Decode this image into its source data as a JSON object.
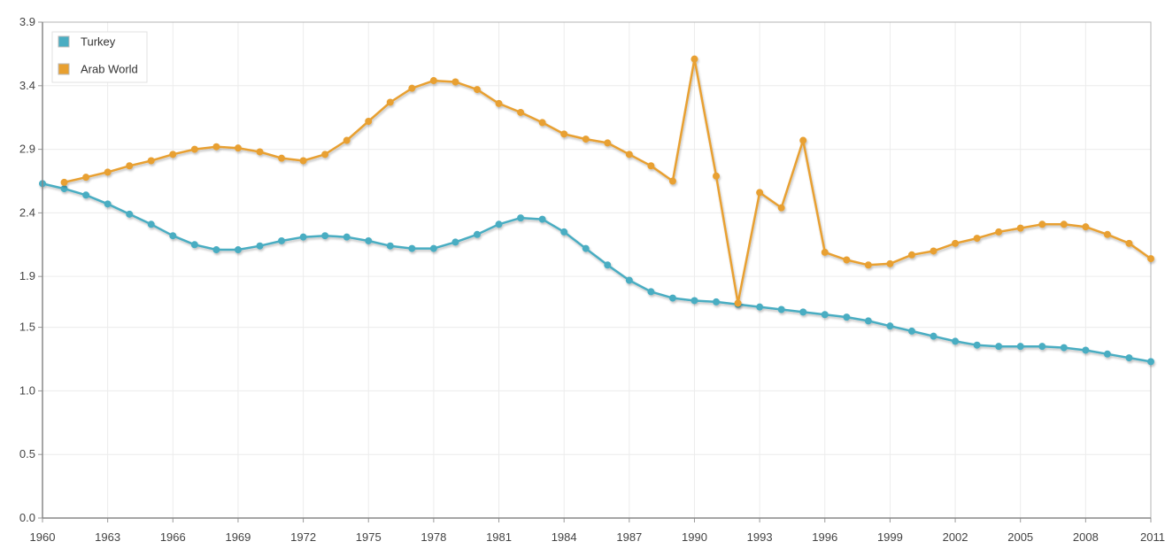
{
  "chart_data": {
    "type": "line",
    "title": "",
    "xlabel": "",
    "ylabel": "",
    "xlim": [
      1960,
      2011
    ],
    "ylim": [
      0,
      3.9
    ],
    "y_ticks": [
      "0.0",
      "0.5",
      "1.0",
      "1.5",
      "1.9",
      "2.4",
      "2.9",
      "3.4",
      "3.9"
    ],
    "x_ticks": [
      "1960",
      "1963",
      "1966",
      "1969",
      "1972",
      "1975",
      "1978",
      "1981",
      "1984",
      "1987",
      "1990",
      "1993",
      "1996",
      "1999",
      "2002",
      "2005",
      "2008",
      "2011"
    ],
    "grid": true,
    "legend_position": "top-left",
    "series": [
      {
        "name": "Turkey",
        "color": "#4aadc2",
        "x": [
          1960,
          1961,
          1962,
          1963,
          1964,
          1965,
          1966,
          1967,
          1968,
          1969,
          1970,
          1971,
          1972,
          1973,
          1974,
          1975,
          1976,
          1977,
          1978,
          1979,
          1980,
          1981,
          1982,
          1983,
          1984,
          1985,
          1986,
          1987,
          1988,
          1989,
          1990,
          1991,
          1992,
          1993,
          1994,
          1995,
          1996,
          1997,
          1998,
          1999,
          2000,
          2001,
          2002,
          2003,
          2004,
          2005,
          2006,
          2007,
          2008,
          2009,
          2010,
          2011
        ],
        "values": [
          2.63,
          2.59,
          2.54,
          2.47,
          2.39,
          2.31,
          2.22,
          2.15,
          2.11,
          2.11,
          2.14,
          2.18,
          2.21,
          2.22,
          2.21,
          2.18,
          2.14,
          2.12,
          2.12,
          2.17,
          2.23,
          2.31,
          2.36,
          2.35,
          2.25,
          2.12,
          1.99,
          1.87,
          1.78,
          1.73,
          1.71,
          1.7,
          1.68,
          1.66,
          1.64,
          1.62,
          1.6,
          1.58,
          1.55,
          1.51,
          1.47,
          1.43,
          1.39,
          1.36,
          1.35,
          1.35,
          1.35,
          1.34,
          1.32,
          1.29,
          1.26,
          1.23
        ]
      },
      {
        "name": "Arab World",
        "color": "#e8a030",
        "x": [
          1961,
          1962,
          1963,
          1964,
          1965,
          1966,
          1967,
          1968,
          1969,
          1970,
          1971,
          1972,
          1973,
          1974,
          1975,
          1976,
          1977,
          1978,
          1979,
          1980,
          1981,
          1982,
          1983,
          1984,
          1985,
          1986,
          1987,
          1988,
          1989,
          1990,
          1991,
          1992,
          1993,
          1994,
          1995,
          1996,
          1997,
          1998,
          1999,
          2000,
          2001,
          2002,
          2003,
          2004,
          2005,
          2006,
          2007,
          2008,
          2009,
          2010,
          2011
        ],
        "values": [
          2.64,
          2.68,
          2.72,
          2.77,
          2.81,
          2.86,
          2.9,
          2.92,
          2.91,
          2.88,
          2.83,
          2.81,
          2.86,
          2.97,
          3.12,
          3.27,
          3.38,
          3.44,
          3.43,
          3.37,
          3.26,
          3.19,
          3.11,
          3.02,
          2.98,
          2.95,
          2.86,
          2.77,
          2.65,
          3.61,
          2.69,
          1.69,
          2.56,
          2.44,
          2.97,
          2.09,
          2.03,
          1.99,
          2.0,
          2.07,
          2.1,
          2.16,
          2.2,
          2.25,
          2.28,
          2.31,
          2.31,
          2.29,
          2.23,
          2.16,
          2.04
        ]
      }
    ]
  }
}
